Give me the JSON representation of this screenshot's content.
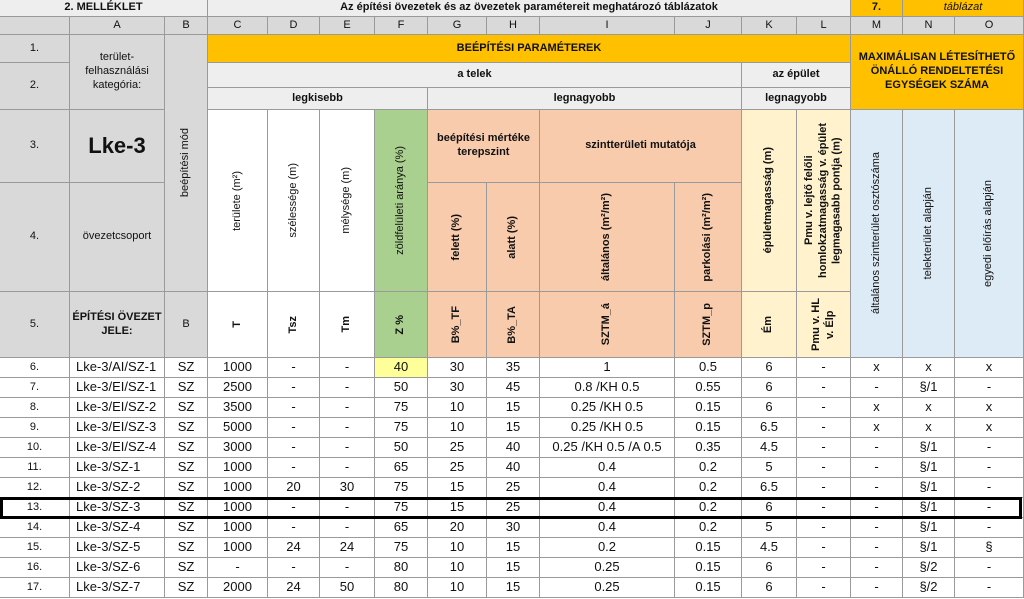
{
  "header": {
    "annex": "2. MELLÉKLET",
    "title": "Az építési övezetek és az övezetek paramétereit meghatározó táblázatok",
    "table_no": "7.",
    "table_label": "táblázat"
  },
  "column_letters": [
    "A",
    "B",
    "C",
    "D",
    "E",
    "F",
    "G",
    "H",
    "I",
    "J",
    "K",
    "L",
    "M",
    "N",
    "O"
  ],
  "row_labels": [
    "1.",
    "2.",
    "3.",
    "4.",
    "5."
  ],
  "head": {
    "category": "terület-felhasználási kategória:",
    "zone": "Lke-3",
    "zone_group": "övezetcsoport",
    "zone_code_label": "ÉPÍTÉSI ÖVEZET JELE:",
    "building_mode": "beépítési mód",
    "params": "BEÉPÍTÉSI PARAMÉTEREK",
    "plot": "a telek",
    "building": "az épület",
    "plot_smallest": "legkisebb",
    "plot_largest": "legnagyobb",
    "building_largest": "legnagyobb",
    "max_units": "MAXIMÁLISAN LÉTESÍTHETŐ ÖNÁLLÓ RENDELTETÉSI EGYSÉGEK SZÁMA",
    "coverage": "beépítési mértéke terepszint",
    "floor_area": "szintterületi mutatója",
    "area": "területe (m²)",
    "width": "szélessége (m)",
    "depth": "mélysége (m)",
    "green": "zöldfelületi aránya (%)",
    "above": "felett (%)",
    "below": "alatt (%)",
    "far_general": "általános (m²/m²)",
    "far_parking": "parkolási (m²/m²)",
    "height": "épületmagasság (m)",
    "pmu": "Pmu v. lejtő felőli homlokzatmagasság v. épület legmagasabb pontja (m)",
    "units_general": "általános szintterület osztószáma",
    "units_plot": "telekterület alapján",
    "units_custom": "egyedi előírás alapján",
    "codes": [
      "B",
      "T",
      "Tsz",
      "Tm",
      "Z %",
      "B%_TF",
      "B%_TA",
      "SZTM_á",
      "SZTM_p",
      "Ém",
      "Pmu v. HL v. Élp"
    ]
  },
  "rows": [
    {
      "no": "6.",
      "cells": [
        "Lke-3/AI/SZ-1",
        "SZ",
        "1000",
        "-",
        "-",
        "40",
        "30",
        "35",
        "1",
        "0.5",
        "6",
        "-",
        "x",
        "x",
        "x"
      ]
    },
    {
      "no": "7.",
      "cells": [
        "Lke-3/EI/SZ-1",
        "SZ",
        "2500",
        "-",
        "-",
        "50",
        "30",
        "45",
        "0.8 /KH 0.5",
        "0.55",
        "6",
        "-",
        "-",
        "§/1",
        "-"
      ]
    },
    {
      "no": "8.",
      "cells": [
        "Lke-3/EI/SZ-2",
        "SZ",
        "3500",
        "-",
        "-",
        "75",
        "10",
        "15",
        "0.25 /KH 0.5",
        "0.15",
        "6",
        "-",
        "x",
        "x",
        "x"
      ]
    },
    {
      "no": "9.",
      "cells": [
        "Lke-3/EI/SZ-3",
        "SZ",
        "5000",
        "-",
        "-",
        "75",
        "10",
        "15",
        "0.25 /KH 0.5",
        "0.15",
        "6.5",
        "-",
        "x",
        "x",
        "x"
      ]
    },
    {
      "no": "10.",
      "cells": [
        "Lke-3/EI/SZ-4",
        "SZ",
        "3000",
        "-",
        "-",
        "50",
        "25",
        "40",
        "0.25 /KH 0.5 /A 0.5",
        "0.35",
        "4.5",
        "-",
        "-",
        "§/1",
        "-"
      ]
    },
    {
      "no": "11.",
      "cells": [
        "Lke-3/SZ-1",
        "SZ",
        "1000",
        "-",
        "-",
        "65",
        "25",
        "40",
        "0.4",
        "0.2",
        "5",
        "-",
        "-",
        "§/1",
        "-"
      ]
    },
    {
      "no": "12.",
      "cells": [
        "Lke-3/SZ-2",
        "SZ",
        "1000",
        "20",
        "30",
        "75",
        "15",
        "25",
        "0.4",
        "0.2",
        "6.5",
        "-",
        "-",
        "§/1",
        "-"
      ]
    },
    {
      "no": "13.",
      "cells": [
        "Lke-3/SZ-3",
        "SZ",
        "1000",
        "-",
        "-",
        "75",
        "15",
        "25",
        "0.4",
        "0.2",
        "6",
        "-",
        "-",
        "§/1",
        "-"
      ]
    },
    {
      "no": "14.",
      "cells": [
        "Lke-3/SZ-4",
        "SZ",
        "1000",
        "-",
        "-",
        "65",
        "20",
        "30",
        "0.4",
        "0.2",
        "5",
        "-",
        "-",
        "§/1",
        "-"
      ]
    },
    {
      "no": "15.",
      "cells": [
        "Lke-3/SZ-5",
        "SZ",
        "1000",
        "24",
        "24",
        "75",
        "10",
        "15",
        "0.2",
        "0.15",
        "4.5",
        "-",
        "-",
        "§/1",
        "§"
      ]
    },
    {
      "no": "16.",
      "cells": [
        "Lke-3/SZ-6",
        "SZ",
        "-",
        "-",
        "-",
        "80",
        "10",
        "15",
        "0.25",
        "0.15",
        "6",
        "-",
        "-",
        "§/2",
        "-"
      ]
    },
    {
      "no": "17.",
      "cells": [
        "Lke-3/SZ-7",
        "SZ",
        "2000",
        "24",
        "50",
        "80",
        "10",
        "15",
        "0.25",
        "0.15",
        "6",
        "-",
        "-",
        "§/2",
        "-"
      ]
    }
  ]
}
